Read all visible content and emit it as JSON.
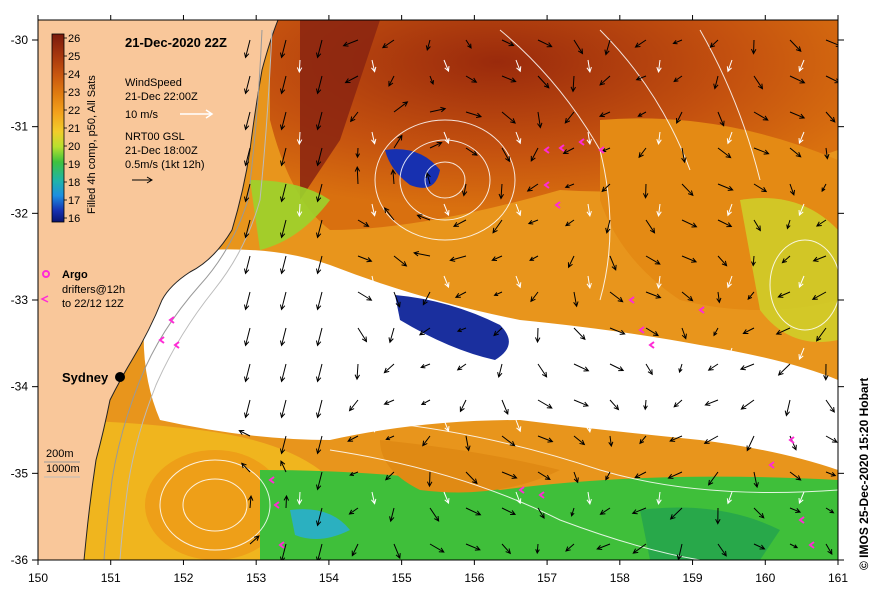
{
  "title": "21-Dec-2020 22Z",
  "colorbar": {
    "label": "Filled 4h comp, p50, All Sats",
    "ticks": [
      "26",
      "25",
      "24",
      "23",
      "22",
      "21",
      "20",
      "19",
      "18",
      "17",
      "16"
    ],
    "colors": [
      "#7a1a0c",
      "#a8380e",
      "#c9570f",
      "#e07c10",
      "#f3a21c",
      "#f2cd2a",
      "#b8e02e",
      "#3fc23d",
      "#1fb4a8",
      "#1d8ee0",
      "#1730b0",
      "#0a1470"
    ]
  },
  "legend": {
    "wind_title": "WindSpeed",
    "wind_time": "21-Dec 22:00Z",
    "wind_scale": "10 m/s",
    "current_title": "NRT00 GSL",
    "current_time": "21-Dec 18:00Z",
    "current_scale": "0.5m/s (1kt 12h)",
    "argo_label": "Argo",
    "drifters_line1": "drifters@12h",
    "drifters_line2": "to 22/12 12Z"
  },
  "depth_legend": {
    "contour_200": "200m",
    "contour_1000": "1000m"
  },
  "city": "Sydney",
  "credit": "© IMOS 25-Dec-2020 15:20 Hobart",
  "axes": {
    "x_ticks": [
      "150",
      "151",
      "152",
      "153",
      "154",
      "155",
      "156",
      "157",
      "158",
      "159",
      "160",
      "161"
    ],
    "y_ticks": [
      "-30",
      "-31",
      "-32",
      "-33",
      "-34",
      "-35",
      "-36"
    ]
  },
  "colors": {
    "land": "#f9c79a",
    "coast": "#222222",
    "argo": "#ff2bd6",
    "wind": "#ffffff",
    "current": "#000000"
  }
}
